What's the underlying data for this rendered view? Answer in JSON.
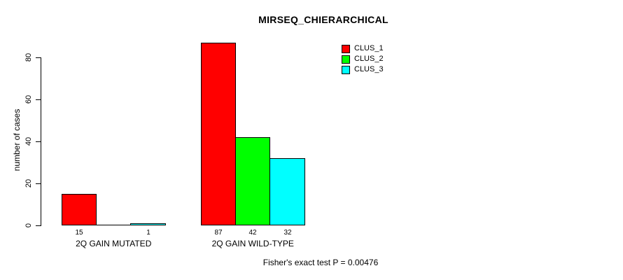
{
  "chart_data": {
    "type": "bar",
    "title": "MIRSEQ_CHIERARCHICAL",
    "ylabel": "number of cases",
    "xlabel": "",
    "ylim": [
      0,
      88
    ],
    "yticks": [
      0,
      20,
      40,
      60,
      80
    ],
    "grid": false,
    "legend_position": "top-right",
    "categories": [
      "2Q GAIN MUTATED",
      "2Q GAIN WILD-TYPE"
    ],
    "series": [
      {
        "name": "CLUS_1",
        "color": "#ff0000",
        "values": [
          15,
          87
        ]
      },
      {
        "name": "CLUS_2",
        "color": "#00ff00",
        "values": [
          0,
          42
        ]
      },
      {
        "name": "CLUS_3",
        "color": "#00ffff",
        "values": [
          1,
          32
        ]
      }
    ],
    "bar_value_labels_shown": [
      15,
      1,
      87,
      42,
      32
    ]
  },
  "footnote": "Fisher's exact test P = 0.00476"
}
